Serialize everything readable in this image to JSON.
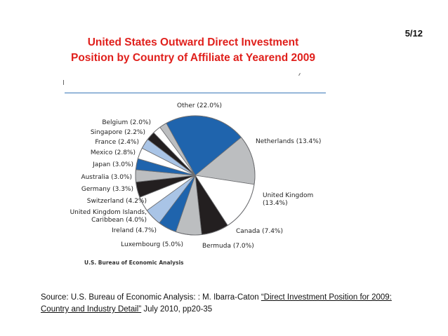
{
  "header": {
    "title_line1": "United States Outward Direct Investment",
    "title_line2": "Position by Country of Affiliate at Yearend 2009",
    "page_number": "5/12"
  },
  "chart_data": {
    "type": "pie",
    "title": "",
    "credit": "U.S. Bureau of Economic Analysis",
    "slices": [
      {
        "label": "Other (22.0%)",
        "value": 22.0,
        "color": "#1f64ad"
      },
      {
        "label": "Netherlands (13.4%)",
        "value": 13.4,
        "color": "#bcbec0"
      },
      {
        "label": "United Kingdom (13.4%)",
        "value": 13.4,
        "color": "#ffffff"
      },
      {
        "label": "Canada (7.4%)",
        "value": 7.4,
        "color": "#231f20"
      },
      {
        "label": "Bermuda (7.0%)",
        "value": 7.0,
        "color": "#bcbec0"
      },
      {
        "label": "Luxembourg (5.0%)",
        "value": 5.0,
        "color": "#1f64ad"
      },
      {
        "label": "Ireland (4.7%)",
        "value": 4.7,
        "color": "#a9c4e6"
      },
      {
        "label": "United Kingdom Islands, Caribbean (4.0%)",
        "value": 4.0,
        "color": "#ffffff"
      },
      {
        "label": "Switzerland (4.2%)",
        "value": 4.2,
        "color": "#231f20"
      },
      {
        "label": "Germany (3.3%)",
        "value": 3.3,
        "color": "#bcbec0"
      },
      {
        "label": "Australia (3.0%)",
        "value": 3.0,
        "color": "#1f64ad"
      },
      {
        "label": "Japan (3.0%)",
        "value": 3.0,
        "color": "#ffffff"
      },
      {
        "label": "Mexico (2.8%)",
        "value": 2.8,
        "color": "#a9c4e6"
      },
      {
        "label": "France (2.4%)",
        "value": 2.4,
        "color": "#231f20"
      },
      {
        "label": "Singapore (2.2%)",
        "value": 2.2,
        "color": "#ffffff"
      },
      {
        "label": "Belgium (2.0%)",
        "value": 2.0,
        "color": "#bcbec0"
      }
    ]
  },
  "source": {
    "prefix": "Source: U.S. Bureau of Economic Analysis: : M. Ibarra-Caton ",
    "link_text": "“Direct Investment Position for 2009: Country and Industry Detail”",
    "suffix": "  July 2010, pp20-35"
  }
}
